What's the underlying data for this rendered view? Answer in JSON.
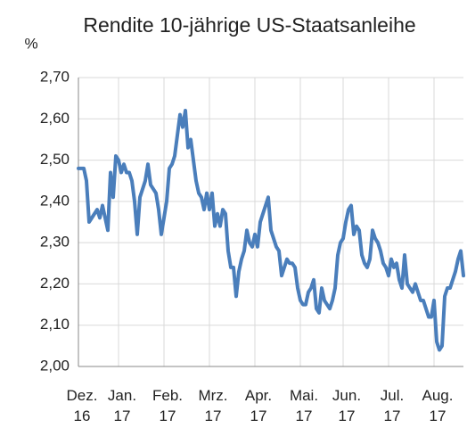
{
  "chart_data": {
    "type": "line",
    "title": "Rendite 10-jährige US-Staatsanleihe",
    "y_label": "%",
    "categories": [
      "Dez. 16",
      null,
      null,
      null,
      null,
      null,
      null,
      null,
      null,
      null,
      null,
      null,
      null,
      null,
      null,
      "Jan. 17",
      null,
      null,
      null,
      null,
      null,
      null,
      null,
      null,
      null,
      null,
      null,
      null,
      null,
      null,
      null,
      null,
      "Feb. 17",
      null,
      null,
      null,
      null,
      null,
      null,
      null,
      null,
      null,
      null,
      null,
      null,
      null,
      null,
      null,
      null,
      "Mrz. 17",
      null,
      null,
      null,
      null,
      null,
      null,
      null,
      null,
      null,
      null,
      null,
      null,
      null,
      null,
      null,
      null,
      "Apr. 17",
      null,
      null,
      null,
      null,
      null,
      null,
      null,
      null,
      null,
      null,
      null,
      null,
      null,
      null,
      null,
      null,
      "Mai. 17",
      null,
      null,
      null,
      null,
      null,
      null,
      null,
      null,
      null,
      null,
      null,
      null,
      null,
      null,
      null,
      "Jun. 17",
      null,
      null,
      null,
      null,
      null,
      null,
      null,
      null,
      null,
      null,
      null,
      null,
      null,
      null,
      null,
      null,
      "Jul. 17",
      null,
      null,
      null,
      null,
      null,
      null,
      null,
      null,
      null,
      null,
      null,
      null,
      null,
      null,
      null,
      null,
      "Aug. 17",
      null,
      null,
      null,
      null,
      null,
      null,
      null,
      null,
      null,
      null,
      null
    ],
    "series": [
      {
        "name": "Rendite",
        "color": "#4a7ebb",
        "values": [
          2.48,
          2.48,
          2.48,
          2.45,
          2.35,
          2.36,
          2.37,
          2.38,
          2.36,
          2.39,
          2.36,
          2.33,
          2.47,
          2.41,
          2.51,
          2.5,
          2.47,
          2.49,
          2.47,
          2.47,
          2.45,
          2.4,
          2.32,
          2.41,
          2.43,
          2.45,
          2.49,
          2.44,
          2.43,
          2.42,
          2.38,
          2.32,
          2.36,
          2.4,
          2.48,
          2.49,
          2.51,
          2.56,
          2.61,
          2.58,
          2.62,
          2.53,
          2.55,
          2.5,
          2.45,
          2.42,
          2.41,
          2.38,
          2.42,
          2.38,
          2.42,
          2.34,
          2.37,
          2.34,
          2.38,
          2.37,
          2.28,
          2.24,
          2.24,
          2.17,
          2.23,
          2.26,
          2.28,
          2.33,
          2.3,
          2.29,
          2.32,
          2.29,
          2.35,
          2.37,
          2.39,
          2.41,
          2.33,
          2.31,
          2.29,
          2.28,
          2.22,
          2.24,
          2.26,
          2.25,
          2.25,
          2.24,
          2.19,
          2.16,
          2.15,
          2.15,
          2.18,
          2.19,
          2.21,
          2.14,
          2.13,
          2.19,
          2.16,
          2.15,
          2.14,
          2.16,
          2.19,
          2.27,
          2.3,
          2.31,
          2.35,
          2.38,
          2.39,
          2.32,
          2.34,
          2.33,
          2.27,
          2.25,
          2.24,
          2.26,
          2.33,
          2.31,
          2.3,
          2.28,
          2.25,
          2.24,
          2.22,
          2.26,
          2.24,
          2.25,
          2.21,
          2.19,
          2.27,
          2.2,
          2.19,
          2.18,
          2.2,
          2.18,
          2.16,
          2.16,
          2.14,
          2.12,
          2.12,
          2.16,
          2.06,
          2.04,
          2.05,
          2.17,
          2.19,
          2.19,
          2.21,
          2.23,
          2.26,
          2.28,
          2.22
        ]
      }
    ],
    "ylim": [
      2.0,
      2.7
    ],
    "yticks": [
      {
        "value": 2.0,
        "label": "2,00"
      },
      {
        "value": 2.1,
        "label": "2,10"
      },
      {
        "value": 2.2,
        "label": "2,20"
      },
      {
        "value": 2.3,
        "label": "2,30"
      },
      {
        "value": 2.4,
        "label": "2,40"
      },
      {
        "value": 2.5,
        "label": "2,50"
      },
      {
        "value": 2.6,
        "label": "2,60"
      },
      {
        "value": 2.7,
        "label": "2,70"
      }
    ],
    "grid": true
  }
}
